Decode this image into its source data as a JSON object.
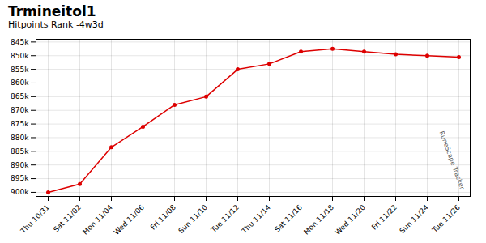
{
  "chart_data": {
    "type": "line",
    "title": "Trmineitol1",
    "subtitle": "Hitpoints Rank -4w3d",
    "categories": [
      "Thu 10/31",
      "Sat 11/02",
      "Mon 11/04",
      "Wed 11/06",
      "Fri 11/08",
      "Sun 11/10",
      "Tue 11/12",
      "Thu 11/14",
      "Sat 11/16",
      "Mon 11/18",
      "Wed 11/20",
      "Fri 11/22",
      "Sun 11/24",
      "Tue 11/26"
    ],
    "values": [
      900000,
      897000,
      883500,
      876000,
      868000,
      865000,
      855000,
      853000,
      848500,
      847500,
      848500,
      849500,
      850000,
      850500
    ],
    "color": "#dd0000",
    "marker": "o",
    "ylim": [
      901500,
      844000
    ],
    "yticks": [
      {
        "value": 845000,
        "label": "845k"
      },
      {
        "value": 850000,
        "label": "850k"
      },
      {
        "value": 855000,
        "label": "855k"
      },
      {
        "value": 860000,
        "label": "860k"
      },
      {
        "value": 865000,
        "label": "865k"
      },
      {
        "value": 870000,
        "label": "870k"
      },
      {
        "value": 875000,
        "label": "875k"
      },
      {
        "value": 880000,
        "label": "880k"
      },
      {
        "value": 885000,
        "label": "885k"
      },
      {
        "value": 890000,
        "label": "890k"
      },
      {
        "value": 895000,
        "label": "895k"
      },
      {
        "value": 900000,
        "label": "900k"
      }
    ],
    "grid": true,
    "annotations": [
      "RuneScape Tracker"
    ]
  }
}
